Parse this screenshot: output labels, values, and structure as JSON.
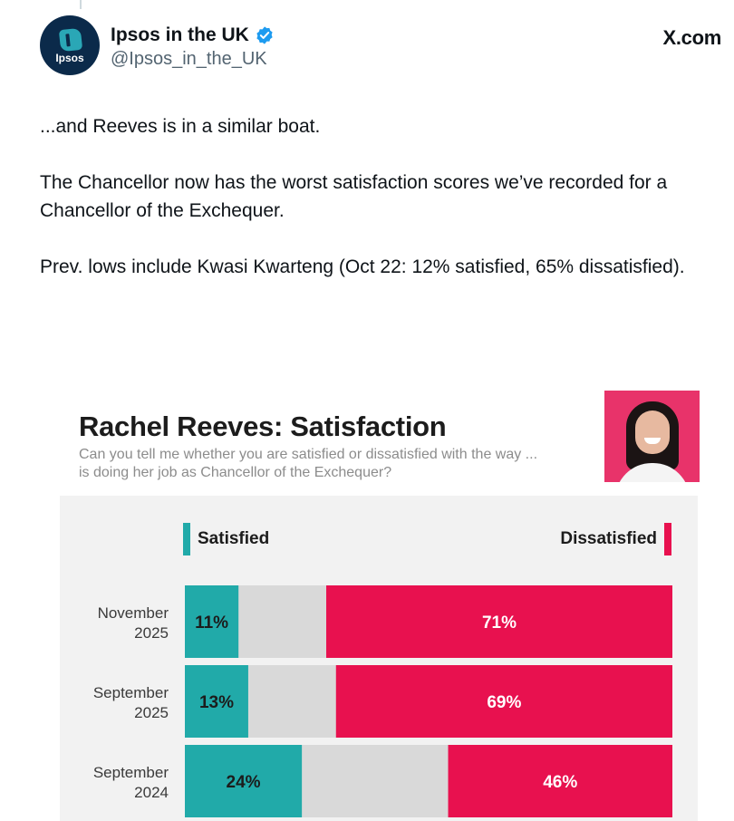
{
  "tweet": {
    "display_name": "Ipsos in the UK",
    "handle": "@Ipsos_in_the_UK",
    "source": "X.com",
    "avatar_text": "Ipsos",
    "paragraphs": [
      "...and Reeves is in a similar boat.",
      "The Chancellor now has the worst satisfaction scores we’ve recorded for a Chancellor of the Exchequer.",
      "Prev. lows include Kwasi Kwarteng (Oct 22: 12% satisfied, 65% dissatisfied)."
    ]
  },
  "colors": {
    "satisfied": "#21aaa9",
    "dissatisfied": "#e8114f",
    "neutral": "#d9d9d9",
    "verified": "#1d9bf0"
  },
  "chart_data": {
    "type": "bar",
    "stacked": true,
    "orientation": "horizontal",
    "title": "Rachel Reeves: Satisfaction",
    "subtitle": "Can you tell me whether you are satisfied or dissatisfied with the way ... is doing her job as Chancellor of the Exchequer?",
    "legend": [
      "Satisfied",
      "Dissatisfied"
    ],
    "categories": [
      [
        "November",
        "2025"
      ],
      [
        "September",
        "2025"
      ],
      [
        "September",
        "2024"
      ]
    ],
    "series": [
      {
        "name": "Satisfied",
        "values": [
          11,
          13,
          24
        ],
        "labels": [
          "11%",
          "13%",
          "24%"
        ]
      },
      {
        "name": "Dissatisfied",
        "values": [
          71,
          69,
          46
        ],
        "labels": [
          "71%",
          "69%",
          "46%"
        ]
      }
    ],
    "xlim": [
      0,
      100
    ]
  }
}
